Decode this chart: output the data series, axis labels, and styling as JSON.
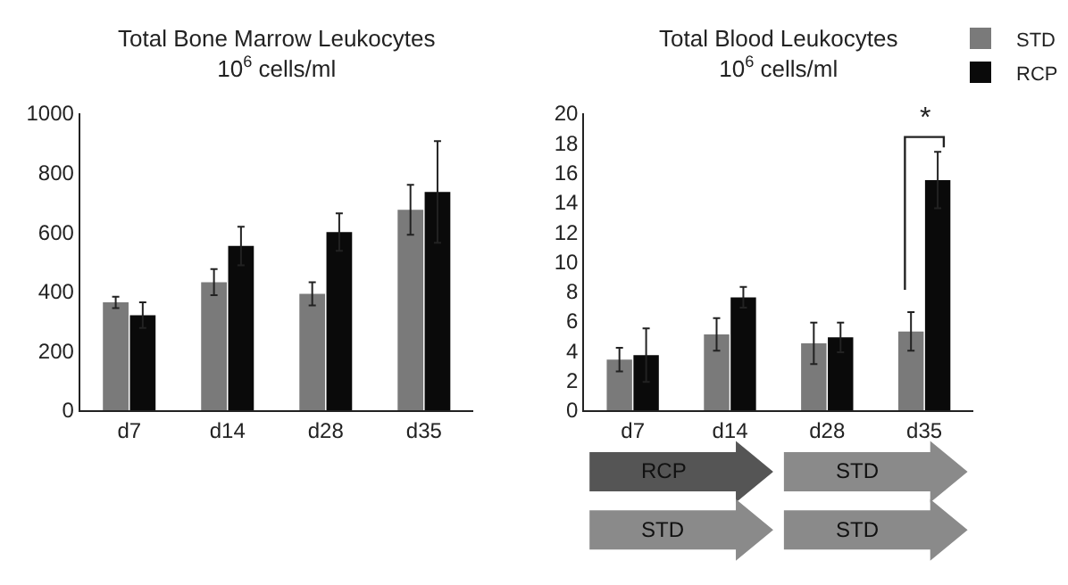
{
  "chart_data": [
    {
      "type": "bar",
      "title": "Total Bone Marrow Leukocytes",
      "subtitle": "10$^{6}$ cells/ml",
      "categories": [
        "d7",
        "d14",
        "d28",
        "d35"
      ],
      "series": [
        {
          "color": "#7a7a7a",
          "values": [
            363,
            431,
            392,
            675
          ],
          "errors": [
            19,
            44,
            39,
            84
          ]
        },
        {
          "color": "#0a0a0a",
          "values": [
            320,
            553,
            600,
            735
          ],
          "errors": [
            43,
            65,
            63,
            171
          ]
        }
      ],
      "ylim": [
        0,
        1000
      ],
      "yticks": [
        0,
        200,
        400,
        600,
        800,
        1000
      ],
      "legend": false
    },
    {
      "type": "bar",
      "title": "Total Blood Leukocytes",
      "subtitle": "10$^{6}$ cells/ml",
      "categories": [
        "d7",
        "d14",
        "d28",
        "d35"
      ],
      "series": [
        {
          "name": "STD",
          "color": "#7a7a7a",
          "values": [
            3.4,
            5.1,
            4.5,
            5.3
          ],
          "errors": [
            0.8,
            1.1,
            1.4,
            1.3
          ]
        },
        {
          "name": "RCP",
          "color": "#0a0a0a",
          "values": [
            3.7,
            7.6,
            4.9,
            15.5
          ],
          "errors": [
            1.8,
            0.7,
            1.0,
            1.9
          ]
        }
      ],
      "ylim": [
        0,
        20
      ],
      "yticks": [
        0,
        2,
        4,
        6,
        8,
        10,
        12,
        14,
        16,
        18,
        20
      ],
      "legend": "top right",
      "annotations": [
        "*",
        "RCP",
        "STD",
        "STD",
        "STD"
      ]
    }
  ]
}
